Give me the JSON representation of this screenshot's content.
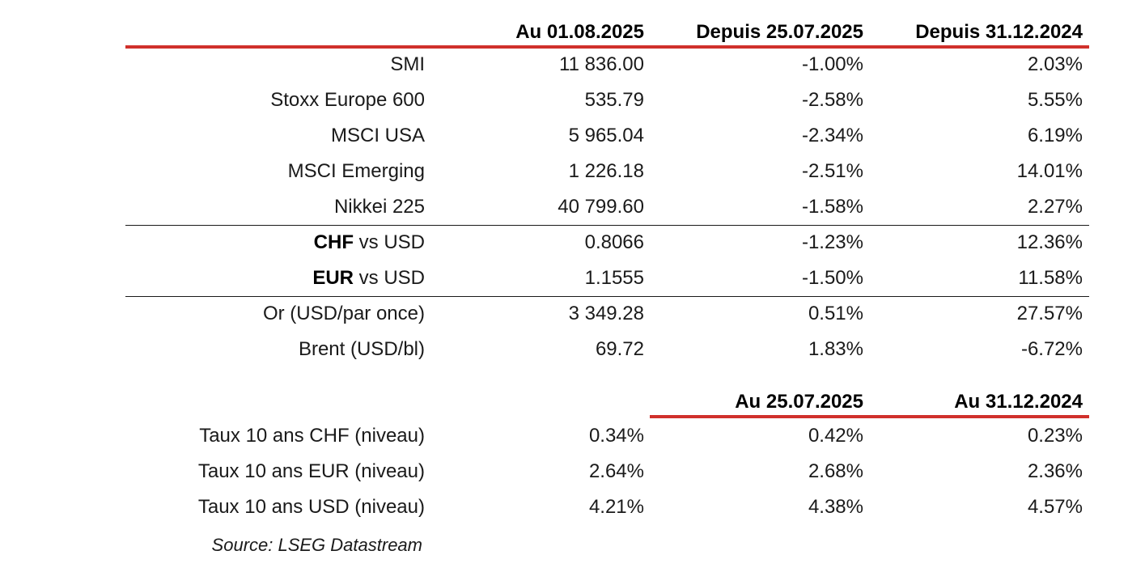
{
  "table1": {
    "headers": [
      "Au 01.08.2025",
      "Depuis 25.07.2025",
      "Depuis 31.12.2024"
    ],
    "rows": [
      {
        "label": "SMI",
        "value": "11 836.00",
        "since_week": "-1.00%",
        "since_year": "2.03%"
      },
      {
        "label": "Stoxx Europe 600",
        "value": "535.79",
        "since_week": "-2.58%",
        "since_year": "5.55%"
      },
      {
        "label": "MSCI USA",
        "value": "5 965.04",
        "since_week": "-2.34%",
        "since_year": "6.19%"
      },
      {
        "label": "MSCI Emerging",
        "value": "1 226.18",
        "since_week": "-2.51%",
        "since_year": "14.01%"
      },
      {
        "label": "Nikkei 225",
        "value": "40 799.60",
        "since_week": "-1.58%",
        "since_year": "2.27%"
      }
    ],
    "fx_rows": [
      {
        "ccy": "CHF",
        "rest": " vs USD",
        "value": "0.8066",
        "since_week": "-1.23%",
        "since_year": "12.36%"
      },
      {
        "ccy": "EUR",
        "rest": " vs USD",
        "value": "1.1555",
        "since_week": "-1.50%",
        "since_year": "11.58%"
      }
    ],
    "commodity_rows": [
      {
        "label": "Or (USD/par once)",
        "value": "3 349.28",
        "since_week": "0.51%",
        "since_year": "27.57%"
      },
      {
        "label": "Brent (USD/bl)",
        "value": "69.72",
        "since_week": "1.83%",
        "since_year": "-6.72%"
      }
    ]
  },
  "table2": {
    "headers": [
      "Au 25.07.2025",
      "Au 31.12.2024"
    ],
    "rows": [
      {
        "label": "Taux 10 ans CHF (niveau)",
        "value": "0.34%",
        "at_week": "0.42%",
        "at_year": "0.23%"
      },
      {
        "label": "Taux 10 ans EUR (niveau)",
        "value": "2.64%",
        "at_week": "2.68%",
        "at_year": "2.36%"
      },
      {
        "label": "Taux 10 ans USD (niveau)",
        "value": "4.21%",
        "at_week": "4.38%",
        "at_year": "4.57%"
      }
    ]
  },
  "source": "Source: LSEG Datastream",
  "colors": {
    "accent_rule": "#d0302b",
    "text": "#1a1a1a"
  }
}
